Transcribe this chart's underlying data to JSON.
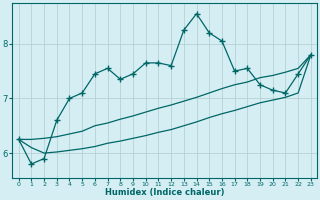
{
  "xlabel": "Humidex (Indice chaleur)",
  "ylabel": "",
  "bg_color": "#d4eef4",
  "grid_color": "#b0cccc",
  "line_color": "#006666",
  "xlim": [
    -0.5,
    23.5
  ],
  "ylim": [
    5.55,
    8.75
  ],
  "xticks": [
    0,
    1,
    2,
    3,
    4,
    5,
    6,
    7,
    8,
    9,
    10,
    11,
    12,
    13,
    14,
    15,
    16,
    17,
    18,
    19,
    20,
    21,
    22,
    23
  ],
  "yticks": [
    6,
    7,
    8
  ],
  "x": [
    0,
    1,
    2,
    3,
    4,
    5,
    6,
    7,
    8,
    9,
    10,
    11,
    12,
    13,
    14,
    15,
    16,
    17,
    18,
    19,
    20,
    21,
    22,
    23
  ],
  "y_main": [
    6.25,
    5.8,
    5.9,
    6.6,
    7.0,
    7.1,
    7.45,
    7.55,
    7.35,
    7.45,
    7.65,
    7.65,
    7.6,
    8.25,
    8.55,
    8.2,
    8.05,
    7.5,
    7.55,
    7.25,
    7.15,
    7.1,
    7.45,
    7.8
  ],
  "y_line1": [
    6.25,
    6.25,
    6.27,
    6.3,
    6.35,
    6.4,
    6.5,
    6.55,
    6.62,
    6.68,
    6.75,
    6.82,
    6.88,
    6.95,
    7.02,
    7.1,
    7.18,
    7.25,
    7.3,
    7.38,
    7.42,
    7.48,
    7.55,
    7.8
  ],
  "y_line2": [
    6.25,
    6.1,
    6.0,
    6.02,
    6.05,
    6.08,
    6.12,
    6.18,
    6.22,
    6.27,
    6.32,
    6.38,
    6.43,
    6.5,
    6.57,
    6.65,
    6.72,
    6.78,
    6.85,
    6.92,
    6.97,
    7.02,
    7.1,
    7.8
  ]
}
